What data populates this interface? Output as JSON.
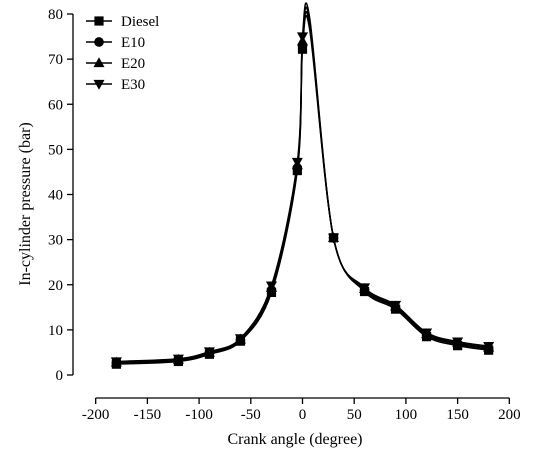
{
  "chart_data": {
    "type": "line",
    "title": "",
    "xlabel": "Crank angle (degree)",
    "ylabel": "In-cylinder pressure (bar)",
    "xlim": [
      -220,
      220
    ],
    "ylim": [
      0,
      80
    ],
    "xticks": [
      -200,
      -150,
      -100,
      -50,
      0,
      50,
      100,
      150,
      200
    ],
    "yticks": [
      0,
      10,
      20,
      30,
      40,
      50,
      60,
      70,
      80
    ],
    "grid": false,
    "legend_position": "top-left",
    "marker_x": [
      -180,
      -120,
      -90,
      -60,
      -30,
      -5,
      0,
      30,
      60,
      90,
      120,
      150,
      180
    ],
    "series": [
      {
        "name": "Diesel",
        "marker": "square",
        "x": [
          -180,
          -120,
          -90,
          -60,
          -30,
          -5,
          0,
          7,
          30,
          60,
          90,
          120,
          150,
          180
        ],
        "values": [
          2.4,
          3.0,
          4.6,
          7.5,
          18.3,
          45.3,
          72.2,
          76.5,
          30.4,
          18.5,
          14.6,
          8.5,
          6.5,
          5.5
        ]
      },
      {
        "name": "E10",
        "marker": "circle",
        "x": [
          -180,
          -120,
          -90,
          -60,
          -30,
          -5,
          0,
          7,
          30,
          60,
          90,
          120,
          150,
          180
        ],
        "values": [
          2.6,
          3.2,
          4.8,
          7.7,
          18.8,
          45.9,
          73.0,
          77.3,
          30.4,
          18.8,
          14.9,
          8.8,
          6.8,
          5.8
        ]
      },
      {
        "name": "E20",
        "marker": "triangle-up",
        "x": [
          -180,
          -120,
          -90,
          -60,
          -30,
          -5,
          0,
          7,
          30,
          60,
          90,
          120,
          150,
          180
        ],
        "values": [
          2.8,
          3.4,
          5.0,
          7.9,
          19.3,
          46.5,
          74.0,
          78.2,
          30.4,
          19.1,
          15.2,
          9.1,
          7.1,
          6.1
        ]
      },
      {
        "name": "E30",
        "marker": "triangle-down",
        "x": [
          -180,
          -120,
          -90,
          -60,
          -30,
          -5,
          0,
          7,
          30,
          60,
          90,
          120,
          150,
          180
        ],
        "values": [
          3.0,
          3.6,
          5.2,
          8.1,
          19.8,
          47.2,
          75.0,
          79.0,
          30.4,
          19.4,
          15.5,
          9.4,
          7.4,
          6.4
        ]
      }
    ]
  }
}
